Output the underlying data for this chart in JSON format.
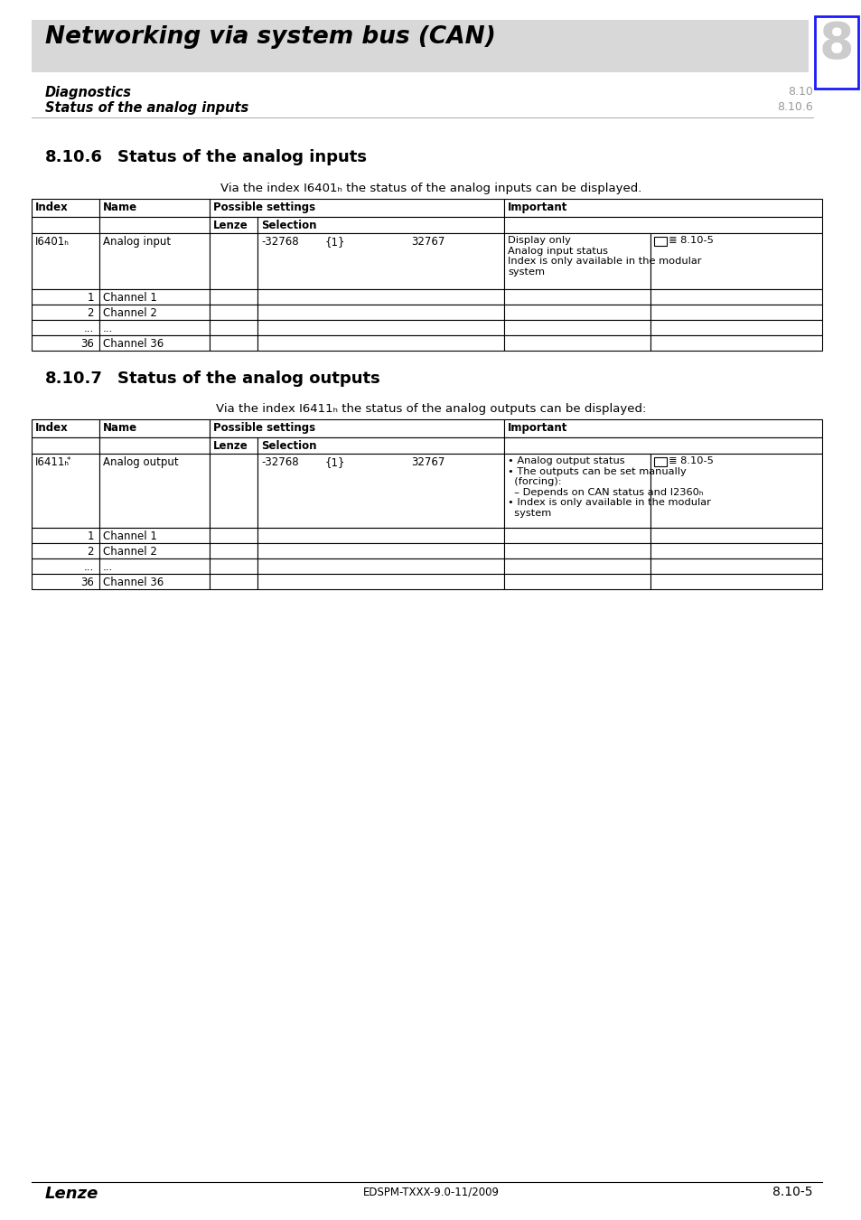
{
  "page_bg": "#ffffff",
  "header_bg": "#d8d8d8",
  "header_title": "Networking via system bus (CAN)",
  "chapter_num": "8",
  "subheader_line1": "Diagnostics",
  "subheader_line2": "Status of the analog inputs",
  "subheader_right1": "8.10",
  "subheader_right2": "8.10.6",
  "section1_heading": "8.10.6",
  "section1_heading2": "Status of the analog inputs",
  "section1_intro": "Via the index I6401ₕ the status of the analog inputs can be displayed.",
  "section2_heading": "8.10.7",
  "section2_heading2": "Status of the analog outputs",
  "section2_intro": "Via the index I6411ₕ the status of the analog outputs can be displayed:",
  "table1_important_row0": "Display only\nAnalog input status\nIndex is only available in the modular\nsystem",
  "table1_ref_row0": "≣ 8.10-5",
  "table2_important_row0": "• Analog output status\n• The outputs can be set manually\n  (forcing):\n  – Depends on CAN status and I2360ₕ\n• Index is only available in the modular\n  system",
  "table2_ref_row0": "≣ 8.10-5",
  "footer_left": "Lenze",
  "footer_center": "EDSPM-TXXX-9.0-11/2009",
  "footer_right": "8.10-5",
  "index_col1": "I6401ₕ",
  "name_col1": "Analog input",
  "lenze_val": "",
  "sel_min": "-32768",
  "sel_step": "{1}",
  "sel_max": "32767",
  "index_col1_t2": "I6411ₕ",
  "index_col1_t2_sup": "*",
  "name_col1_t2": "Analog output",
  "channels": [
    "1",
    "2",
    "...",
    "36"
  ],
  "channel_names": [
    "Channel 1",
    "Channel 2",
    "...",
    "Channel 36"
  ]
}
